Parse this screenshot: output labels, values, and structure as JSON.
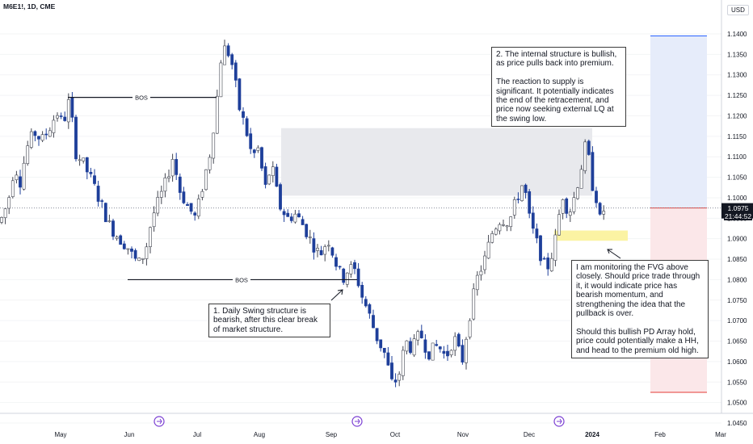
{
  "header": {
    "symbol": "M6E1!, 1D, CME",
    "currency": "USD"
  },
  "price_axis": {
    "last_price": "1.0975",
    "countdown": "21:44:52"
  },
  "labels": {
    "bos_top": "BOS",
    "bos_bottom": "BOS"
  },
  "annotations": {
    "note1": "1. Daily Swing structure is bearish, after this clear break of market structure.",
    "note2": "2. The internal structure is bullish, as price pulls back into premium.\n\nThe reaction to supply is significant. It potentially indicates the end of the retracement, and price now seeking external LQ at the swing low.",
    "note3": "I am monitoring the FVG above closely. Should price trade through it, it would indicate price has bearish momentum, and strengthening the idea that the pullback is over.\n\nShould this bullish PD Array hold, price could potentially make a HH, and head to the premium old high."
  },
  "colors": {
    "bull": "#ffffff",
    "bull_border": "#434651",
    "bear": "#1e3f9a",
    "supply_zone": "#e8e9ed",
    "fvg_zone": "#fbf3a3",
    "target_zone": "#e6ecfa",
    "stop_zone": "#fbe7e9",
    "last_price_bg": "#131722"
  },
  "chart_data": {
    "type": "candlestick",
    "y_axis": {
      "ticks": [
        "1.1400",
        "1.1350",
        "1.1300",
        "1.1250",
        "1.1200",
        "1.1150",
        "1.1100",
        "1.1050",
        "1.1000",
        "1.0950",
        "1.0900",
        "1.0850",
        "1.0800",
        "1.0750",
        "1.0700",
        "1.0650",
        "1.0600",
        "1.0550",
        "1.0500",
        "1.0450"
      ],
      "range": [
        1.0435,
        1.1425
      ]
    },
    "x_axis": {
      "ticks": [
        "May",
        "Jun",
        "Jul",
        "Aug",
        "Sep",
        "Oct",
        "Nov",
        "Dec",
        "2024",
        "Feb",
        "Mar"
      ]
    },
    "waypoints": [
      [
        0,
        1.094
      ],
      [
        10,
        1.099
      ],
      [
        18,
        1.108
      ],
      [
        25,
        1.104
      ],
      [
        33,
        1.112
      ],
      [
        42,
        1.116
      ],
      [
        52,
        1.114
      ],
      [
        64,
        1.118
      ],
      [
        70,
        1.121
      ],
      [
        78,
        1.118
      ],
      [
        86,
        1.124
      ],
      [
        94,
        1.111
      ],
      [
        104,
        1.108
      ],
      [
        114,
        1.104
      ],
      [
        124,
        1.099
      ],
      [
        136,
        1.093
      ],
      [
        148,
        1.09
      ],
      [
        158,
        1.088
      ],
      [
        166,
        1.085
      ],
      [
        172,
        1.084
      ],
      [
        180,
        1.087
      ],
      [
        188,
        1.095
      ],
      [
        196,
        1.099
      ],
      [
        204,
        1.103
      ],
      [
        214,
        1.11
      ],
      [
        222,
        1.102
      ],
      [
        232,
        1.098
      ],
      [
        242,
        1.095
      ],
      [
        252,
        1.104
      ],
      [
        260,
        1.111
      ],
      [
        268,
        1.123
      ],
      [
        274,
        1.135
      ],
      [
        280,
        1.137
      ],
      [
        288,
        1.132
      ],
      [
        296,
        1.122
      ],
      [
        304,
        1.117
      ],
      [
        312,
        1.11
      ],
      [
        320,
        1.112
      ],
      [
        328,
        1.102
      ],
      [
        336,
        1.108
      ],
      [
        346,
        1.098
      ],
      [
        356,
        1.095
      ],
      [
        366,
        1.096
      ],
      [
        376,
        1.093
      ],
      [
        386,
        1.089
      ],
      [
        396,
        1.086
      ],
      [
        406,
        1.09
      ],
      [
        416,
        1.084
      ],
      [
        424,
        1.08
      ],
      [
        432,
        1.083
      ],
      [
        440,
        1.082
      ],
      [
        448,
        1.076
      ],
      [
        456,
        1.072
      ],
      [
        466,
        1.066
      ],
      [
        476,
        1.062
      ],
      [
        486,
        1.054
      ],
      [
        494,
        1.057
      ],
      [
        502,
        1.065
      ],
      [
        510,
        1.063
      ],
      [
        520,
        1.067
      ],
      [
        530,
        1.062
      ],
      [
        542,
        1.064
      ],
      [
        552,
        1.061
      ],
      [
        562,
        1.066
      ],
      [
        572,
        1.06
      ],
      [
        580,
        1.07
      ],
      [
        590,
        1.08
      ],
      [
        600,
        1.085
      ],
      [
        610,
        1.092
      ],
      [
        620,
        1.095
      ],
      [
        630,
        1.094
      ],
      [
        640,
        1.1
      ],
      [
        648,
        1.104
      ],
      [
        656,
        1.094
      ],
      [
        666,
        1.088
      ],
      [
        676,
        1.082
      ],
      [
        686,
        1.088
      ],
      [
        696,
        1.101
      ],
      [
        704,
        1.096
      ],
      [
        712,
        1.101
      ],
      [
        720,
        1.108
      ],
      [
        726,
        1.114
      ],
      [
        732,
        1.104
      ],
      [
        738,
        1.1
      ],
      [
        744,
        1.093
      ],
      [
        748,
        1.098
      ],
      [
        752,
        1.0975
      ]
    ],
    "markers": {
      "bos_high": 1.1245,
      "bos_low": 1.08,
      "supply_zone": [
        1.1005,
        1.117
      ],
      "fvg_zone": [
        1.0895,
        1.092
      ],
      "target_high": 1.1395,
      "entry": 1.0975,
      "stop_low": 1.0525,
      "last_price": 1.0975
    }
  }
}
